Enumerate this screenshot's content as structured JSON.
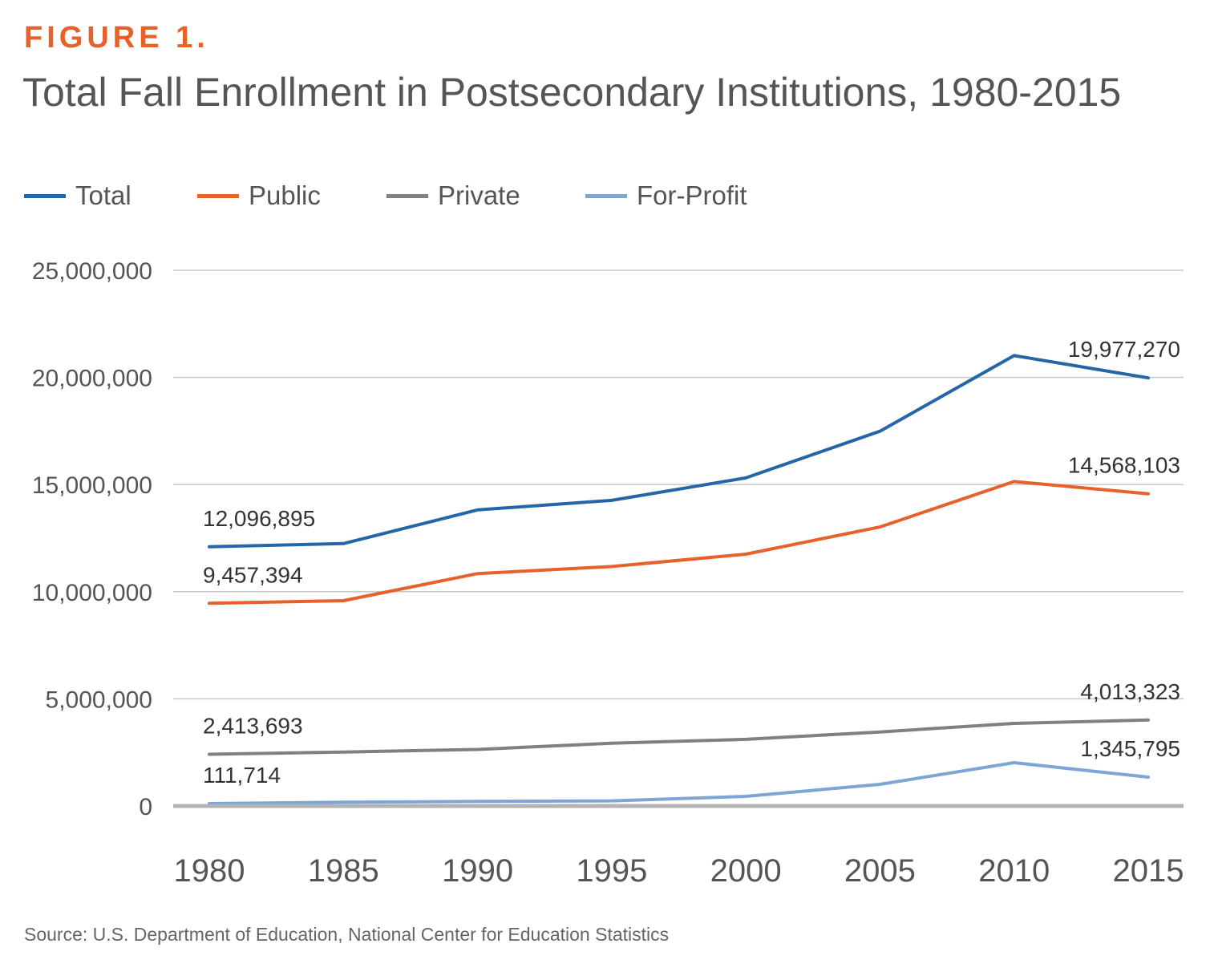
{
  "figure_label": "FIGURE 1.",
  "source": "Source: U.S. Department of Education, National Center for Education Statistics",
  "colors": {
    "accent": "#e8602a",
    "grid": "#c8c8c8",
    "baseline": "#b3b3b3",
    "text": "#555555"
  },
  "chart_data": {
    "type": "line",
    "title": "Total Fall Enrollment in Postsecondary Institutions, 1980-2015",
    "xlabel": "",
    "ylabel": "",
    "x": [
      "1980",
      "1985",
      "1990",
      "1995",
      "2000",
      "2005",
      "2010",
      "2015"
    ],
    "ylim": [
      0,
      25000000
    ],
    "yticks": [
      0,
      5000000,
      10000000,
      15000000,
      20000000,
      25000000
    ],
    "ytick_labels": [
      "0",
      "5,000,000",
      "10,000,000",
      "15,000,000",
      "20,000,000",
      "25,000,000"
    ],
    "grid": true,
    "legend_position": "top-left",
    "series": [
      {
        "name": "Total",
        "color": "#2566a8",
        "values": [
          12096895,
          12247000,
          13819000,
          14262000,
          15312000,
          17487000,
          21019000,
          19977270
        ],
        "labels": [
          {
            "index": 0,
            "text": "12,096,895"
          },
          {
            "index": 7,
            "text": "19,977,270"
          }
        ]
      },
      {
        "name": "Public",
        "color": "#e8602a",
        "values": [
          9457394,
          9579000,
          10845000,
          11177000,
          11753000,
          13022000,
          15143000,
          14568103
        ],
        "labels": [
          {
            "index": 0,
            "text": "9,457,394"
          },
          {
            "index": 7,
            "text": "14,568,103"
          }
        ]
      },
      {
        "name": "Private",
        "color": "#808080",
        "values": [
          2413693,
          2520000,
          2637000,
          2930000,
          3109000,
          3455000,
          3855000,
          4013323
        ],
        "labels": [
          {
            "index": 0,
            "text": "2,413,693"
          },
          {
            "index": 7,
            "text": "4,013,323"
          }
        ]
      },
      {
        "name": "For-Profit",
        "color": "#7ea6d4",
        "values": [
          111714,
          176000,
          214000,
          240000,
          450000,
          1011000,
          2022000,
          1345795
        ],
        "labels": [
          {
            "index": 0,
            "text": "111,714"
          },
          {
            "index": 7,
            "text": "1,345,795"
          }
        ]
      }
    ]
  }
}
